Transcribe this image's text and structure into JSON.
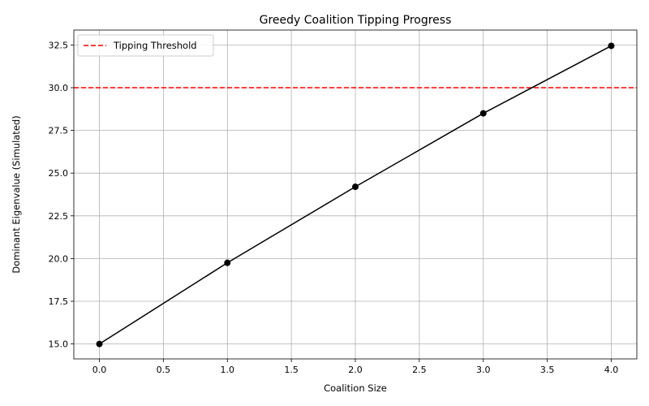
{
  "chart_data": {
    "type": "line",
    "title": "Greedy Coalition Tipping Progress",
    "xlabel": "Coalition Size",
    "ylabel": "Dominant Eigenvalue (Simulated)",
    "xlim": [
      -0.2,
      4.2
    ],
    "ylim": [
      14.125,
      33.375
    ],
    "x_ticks": [
      "0.0",
      "0.5",
      "1.0",
      "1.5",
      "2.0",
      "2.5",
      "3.0",
      "3.5",
      "4.0"
    ],
    "y_ticks": [
      "15.0",
      "17.5",
      "20.0",
      "22.5",
      "25.0",
      "27.5",
      "30.0",
      "32.5"
    ],
    "grid": true,
    "legend_position": "top-left",
    "series": [
      {
        "x": [
          0,
          1,
          2,
          3,
          4
        ],
        "y": [
          15.0,
          19.75,
          24.2,
          28.5,
          32.45
        ],
        "color": "#000000",
        "marker": "circle"
      }
    ],
    "threshold": {
      "name": "Tipping Threshold",
      "value": 30.0,
      "color": "#ff0000",
      "style": "dashed"
    }
  }
}
